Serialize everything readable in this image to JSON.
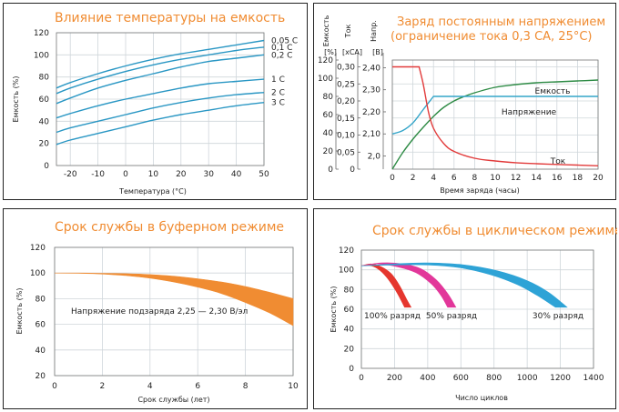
{
  "chart_data": [
    {
      "type": "line",
      "title": "Влияние температуры на емкость",
      "xlabel": "Температура (°C)",
      "ylabel": "Емкость (%)",
      "xlim": [
        -25,
        50
      ],
      "ylim": [
        0,
        120
      ],
      "x_ticks": [
        "-20",
        "-10",
        "0",
        "10",
        "20",
        "30",
        "40",
        "50"
      ],
      "y_ticks": [
        "0",
        "20",
        "40",
        "60",
        "80",
        "100",
        "120"
      ],
      "grid": true,
      "x": [
        -25,
        -20,
        -10,
        0,
        10,
        20,
        30,
        40,
        50
      ],
      "series": [
        {
          "name": "0,05 C",
          "values": [
            70,
            75,
            83,
            90,
            96,
            101,
            105,
            109,
            113
          ]
        },
        {
          "name": "0,1 C",
          "values": [
            65,
            70,
            78,
            85,
            91,
            96,
            100,
            104,
            107
          ]
        },
        {
          "name": "0,2 C",
          "values": [
            56,
            61,
            70,
            77,
            83,
            89,
            94,
            97,
            100
          ]
        },
        {
          "name": "1 C",
          "values": [
            43,
            47,
            54,
            60,
            65,
            70,
            74,
            76,
            78
          ]
        },
        {
          "name": "2 C",
          "values": [
            30,
            34,
            40,
            46,
            52,
            57,
            61,
            64,
            66
          ]
        },
        {
          "name": "3 C",
          "values": [
            19,
            23,
            29,
            35,
            41,
            46,
            50,
            54,
            57
          ]
        }
      ]
    },
    {
      "type": "line",
      "title": "Заряд постоянным напряжением",
      "subtitle": "(ограничение тока 0,3 СА, 25°С)",
      "xlabel": "Время заряда (часы)",
      "xlim": [
        0,
        20
      ],
      "x_ticks": [
        "0",
        "2",
        "4",
        "6",
        "8",
        "10",
        "12",
        "14",
        "16",
        "18",
        "20"
      ],
      "axes": [
        {
          "name": "Емкость",
          "unit": "[%]",
          "ticks": [
            "0",
            "20",
            "40",
            "60",
            "80",
            "100",
            "120"
          ]
        },
        {
          "name": "Ток",
          "unit": "[хСА]",
          "ticks": [
            "0",
            "0,05",
            "0,10",
            "0,15",
            "0,20",
            "0,25",
            "0,30"
          ]
        },
        {
          "name": "Напр.",
          "unit": "[В]",
          "ticks": [
            "2,0",
            "2,10",
            "2,20",
            "2,30",
            "2,40"
          ]
        }
      ],
      "grid": true,
      "series": [
        {
          "name": "Емкость",
          "color": "#2e8b45",
          "axis": "Емкость",
          "x": [
            0,
            1,
            2,
            3,
            4,
            5,
            6,
            7,
            8,
            10,
            12,
            14,
            16,
            18,
            20
          ],
          "values": [
            0,
            18,
            33,
            46,
            58,
            68,
            75,
            80,
            84,
            90,
            93,
            95,
            96,
            97,
            98
          ]
        },
        {
          "name": "Напряжение",
          "color": "#34a5c9",
          "axis": "Напр.",
          "x": [
            0,
            1,
            2,
            3,
            4,
            5,
            6,
            8,
            10,
            12,
            14,
            16,
            18,
            20
          ],
          "values": [
            2.1,
            2.115,
            2.15,
            2.21,
            2.27,
            2.27,
            2.27,
            2.27,
            2.27,
            2.27,
            2.27,
            2.27,
            2.27,
            2.27
          ]
        },
        {
          "name": "Ток",
          "color": "#e23b3b",
          "axis": "Ток",
          "x": [
            0,
            1,
            2,
            2.6,
            3,
            3.5,
            4,
            5,
            6,
            8,
            10,
            12,
            14,
            16,
            18,
            20
          ],
          "values": [
            0.3,
            0.3,
            0.3,
            0.3,
            0.25,
            0.17,
            0.12,
            0.075,
            0.052,
            0.032,
            0.024,
            0.019,
            0.016,
            0.014,
            0.012,
            0.01
          ]
        }
      ]
    },
    {
      "type": "area",
      "title": "Срок службы в буферном режиме",
      "xlabel": "Срок службы (лет)",
      "ylabel": "Емкость (%)",
      "xlim": [
        0,
        10
      ],
      "ylim": [
        20,
        120
      ],
      "x_ticks": [
        "0",
        "2",
        "4",
        "6",
        "8",
        "10"
      ],
      "y_ticks": [
        "20",
        "40",
        "60",
        "80",
        "100",
        "120"
      ],
      "grid": true,
      "annotation": "Напряжение подзаряда 2,25 — 2,30 В/эл",
      "color": "#f08c32",
      "x": [
        0,
        1,
        2,
        3,
        4,
        5,
        6,
        7,
        8,
        9,
        10
      ],
      "upper": [
        100,
        100,
        99.8,
        99.5,
        98.8,
        97.5,
        95.5,
        93,
        89.5,
        85,
        80
      ],
      "lower": [
        100,
        99.8,
        99.2,
        98,
        96,
        93,
        89,
        84,
        77,
        69,
        59
      ]
    },
    {
      "type": "area",
      "title": "Срок службы в циклическом режиме",
      "xlabel": "Число циклов",
      "ylabel": "Емкость (%)",
      "xlim": [
        0,
        1400
      ],
      "ylim": [
        0,
        120
      ],
      "x_ticks": [
        "0",
        "200",
        "400",
        "600",
        "800",
        "1000",
        "1200",
        "1400"
      ],
      "y_ticks": [
        "0",
        "20",
        "40",
        "60",
        "80",
        "100",
        "120"
      ],
      "grid": true,
      "series": [
        {
          "name": "100% разряд",
          "color": "#e5362e",
          "upper": [
            [
              0,
              104
            ],
            [
              60,
              106
            ],
            [
              120,
              103
            ],
            [
              180,
              96
            ],
            [
              230,
              84
            ],
            [
              270,
              71
            ],
            [
              300,
              62
            ]
          ],
          "lower": [
            [
              0,
              104
            ],
            [
              50,
              104.5
            ],
            [
              100,
              101
            ],
            [
              150,
              93
            ],
            [
              200,
              81
            ],
            [
              240,
              69
            ],
            [
              260,
              62
            ]
          ]
        },
        {
          "name": "50% разряд",
          "color": "#e2379a",
          "upper": [
            [
              0,
              104
            ],
            [
              120,
              107
            ],
            [
              250,
              106
            ],
            [
              360,
              101
            ],
            [
              450,
              90
            ],
            [
              520,
              76
            ],
            [
              570,
              62
            ]
          ],
          "lower": [
            [
              0,
              104
            ],
            [
              100,
              106
            ],
            [
              220,
              103
            ],
            [
              330,
              97
            ],
            [
              420,
              86
            ],
            [
              480,
              74
            ],
            [
              520,
              62
            ]
          ]
        },
        {
          "name": "30% разряд",
          "color": "#2ea3d6",
          "upper": [
            [
              0,
              104
            ],
            [
              200,
              106
            ],
            [
              400,
              107
            ],
            [
              620,
              105
            ],
            [
              820,
              99
            ],
            [
              1000,
              89
            ],
            [
              1130,
              77
            ],
            [
              1240,
              62
            ]
          ],
          "lower": [
            [
              0,
              104
            ],
            [
              200,
              105
            ],
            [
              400,
              105
            ],
            [
              600,
              102
            ],
            [
              780,
              95
            ],
            [
              940,
              85
            ],
            [
              1060,
              74
            ],
            [
              1170,
              62
            ]
          ]
        }
      ]
    }
  ]
}
